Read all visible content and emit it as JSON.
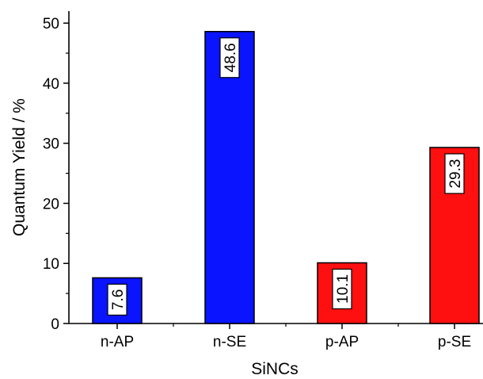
{
  "chart_data": {
    "type": "bar",
    "title": "",
    "xlabel": "SiNCs",
    "ylabel": "Quantum Yield / %",
    "categories": [
      "n-AP",
      "n-SE",
      "p-AP",
      "p-SE"
    ],
    "values": [
      7.6,
      48.6,
      10.1,
      29.3
    ],
    "data_labels": [
      "7.6",
      "48.6",
      "10.1",
      "29.3"
    ],
    "bar_colors": [
      "#0a14ff",
      "#0a14ff",
      "#ff1010",
      "#ff1010"
    ],
    "ylim": [
      0,
      52
    ],
    "yticks": [
      0,
      10,
      20,
      30,
      40,
      50
    ],
    "grid": false,
    "legend": "none"
  }
}
